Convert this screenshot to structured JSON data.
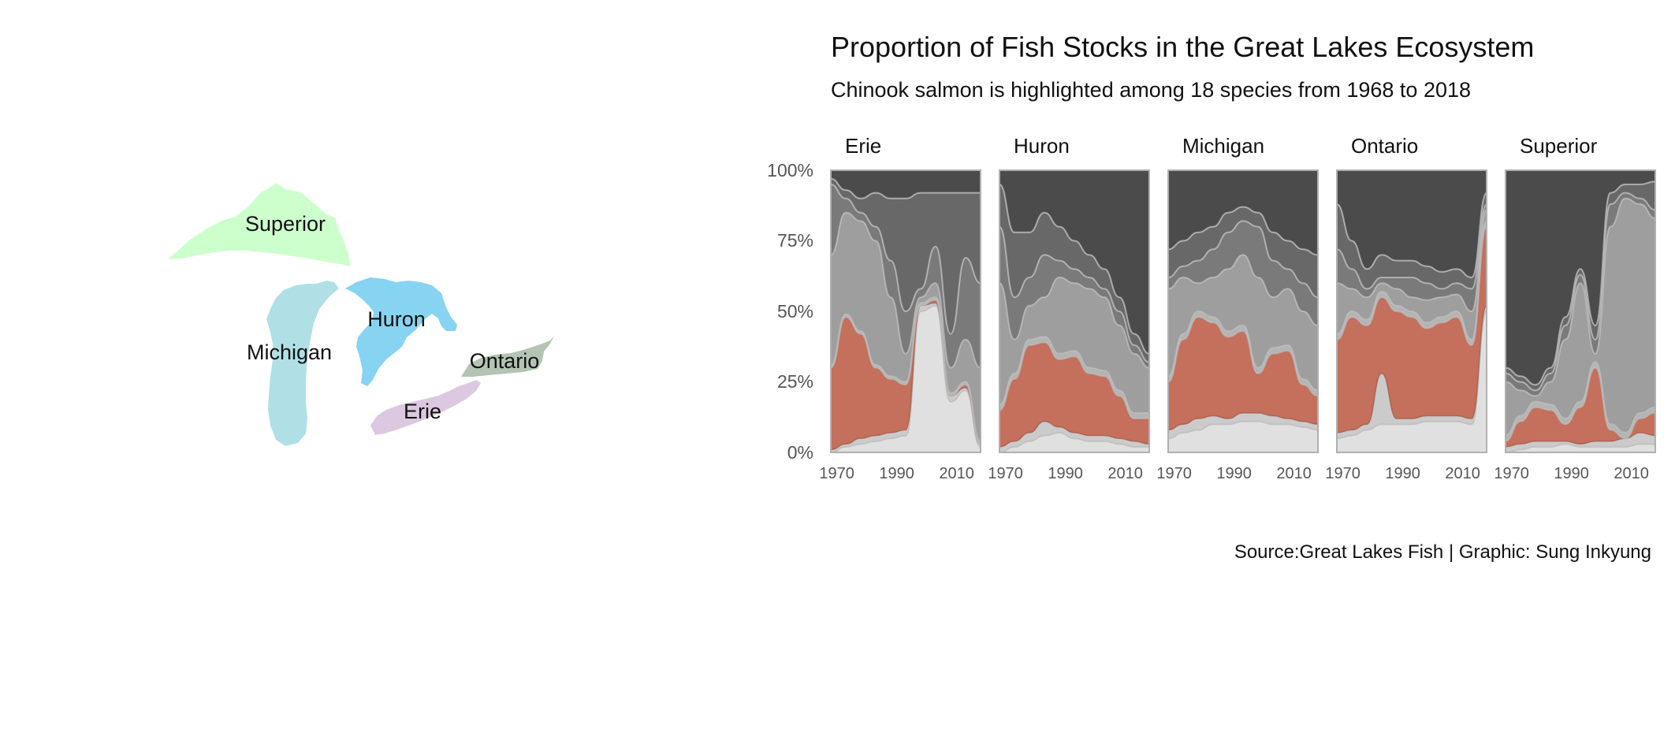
{
  "chart_data": {
    "type": "area",
    "subtype": "stacked-100-percent, faceted",
    "title": "Proportion of Fish Stocks in the Great Lakes Ecosystem",
    "subtitle": "Chinook salmon is highlighted among 18 species from 1968 to 2018",
    "caption": "Source:Great Lakes Fish | Graphic: Sung Inkyung",
    "highlight_series": "Chinook salmon",
    "highlight_color": "#c4705c",
    "grey_palette": [
      "#e0e0e0",
      "#cbcbcb",
      "#b4b4b4",
      "#9e9e9e",
      "#8c8c8c",
      "#7a7a7a",
      "#686868",
      "#5a5a5a",
      "#4b4b4b"
    ],
    "x": [
      1968,
      1973,
      1978,
      1983,
      1988,
      1993,
      1998,
      2003,
      2008,
      2013,
      2018
    ],
    "xlim": [
      1968,
      2018
    ],
    "x_ticks": [
      "1970",
      "1990",
      "2010"
    ],
    "ylim": [
      0,
      1
    ],
    "y_ticks": [
      "0%",
      "25%",
      "50%",
      "75%",
      "100%"
    ],
    "grid": false,
    "legend": "none",
    "facets": [
      {
        "lake": "Erie",
        "cumulative_bounds": [
          [
            0,
            0,
            0,
            0,
            0,
            0,
            0,
            0,
            0,
            0,
            0
          ],
          [
            0.0,
            0.02,
            0.03,
            0.04,
            0.05,
            0.06,
            0.5,
            0.52,
            0.18,
            0.22,
            0.02
          ],
          [
            0.01,
            0.03,
            0.05,
            0.06,
            0.07,
            0.08,
            0.52,
            0.53,
            0.2,
            0.23,
            0.03
          ],
          [
            0.3,
            0.48,
            0.42,
            0.3,
            0.26,
            0.24,
            0.52,
            0.54,
            0.2,
            0.24,
            0.03
          ],
          [
            0.31,
            0.49,
            0.43,
            0.31,
            0.27,
            0.25,
            0.53,
            0.55,
            0.21,
            0.25,
            0.04
          ],
          [
            0.7,
            0.85,
            0.82,
            0.75,
            0.55,
            0.35,
            0.55,
            0.6,
            0.3,
            0.4,
            0.3
          ],
          [
            0.95,
            0.9,
            0.85,
            0.8,
            0.68,
            0.5,
            0.58,
            0.73,
            0.42,
            0.69,
            0.6
          ],
          [
            0.97,
            0.93,
            0.9,
            0.92,
            0.9,
            0.9,
            0.92,
            0.92,
            0.92,
            0.92,
            0.92
          ],
          [
            1,
            1,
            1,
            1,
            1,
            1,
            1,
            1,
            1,
            1,
            1
          ]
        ]
      },
      {
        "lake": "Huron",
        "cumulative_bounds": [
          [
            0,
            0,
            0,
            0,
            0,
            0,
            0,
            0,
            0,
            0,
            0
          ],
          [
            0.0,
            0.02,
            0.04,
            0.06,
            0.07,
            0.05,
            0.04,
            0.04,
            0.03,
            0.02,
            0.02
          ],
          [
            0.02,
            0.04,
            0.07,
            0.11,
            0.09,
            0.07,
            0.06,
            0.06,
            0.05,
            0.04,
            0.03
          ],
          [
            0.15,
            0.26,
            0.38,
            0.39,
            0.33,
            0.34,
            0.28,
            0.27,
            0.2,
            0.12,
            0.12
          ],
          [
            0.17,
            0.28,
            0.4,
            0.41,
            0.35,
            0.36,
            0.3,
            0.29,
            0.22,
            0.14,
            0.14
          ],
          [
            0.6,
            0.4,
            0.52,
            0.55,
            0.62,
            0.6,
            0.58,
            0.55,
            0.45,
            0.35,
            0.3
          ],
          [
            0.8,
            0.55,
            0.62,
            0.7,
            0.68,
            0.65,
            0.62,
            0.58,
            0.5,
            0.38,
            0.32
          ],
          [
            0.95,
            0.78,
            0.78,
            0.85,
            0.8,
            0.75,
            0.7,
            0.65,
            0.55,
            0.42,
            0.35
          ],
          [
            1,
            1,
            1,
            1,
            1,
            1,
            1,
            1,
            1,
            1,
            1
          ]
        ]
      },
      {
        "lake": "Michigan",
        "cumulative_bounds": [
          [
            0,
            0,
            0,
            0,
            0,
            0,
            0,
            0,
            0,
            0,
            0
          ],
          [
            0.05,
            0.07,
            0.08,
            0.1,
            0.1,
            0.11,
            0.11,
            0.1,
            0.1,
            0.09,
            0.08
          ],
          [
            0.08,
            0.1,
            0.12,
            0.13,
            0.12,
            0.14,
            0.14,
            0.13,
            0.12,
            0.11,
            0.1
          ],
          [
            0.25,
            0.4,
            0.48,
            0.46,
            0.41,
            0.43,
            0.28,
            0.35,
            0.36,
            0.24,
            0.2
          ],
          [
            0.27,
            0.42,
            0.5,
            0.48,
            0.43,
            0.45,
            0.3,
            0.37,
            0.38,
            0.26,
            0.22
          ],
          [
            0.58,
            0.62,
            0.6,
            0.62,
            0.65,
            0.7,
            0.62,
            0.55,
            0.58,
            0.5,
            0.45
          ],
          [
            0.62,
            0.66,
            0.68,
            0.72,
            0.78,
            0.82,
            0.8,
            0.68,
            0.65,
            0.6,
            0.55
          ],
          [
            0.72,
            0.75,
            0.78,
            0.8,
            0.85,
            0.87,
            0.85,
            0.78,
            0.75,
            0.72,
            0.7
          ],
          [
            1,
            1,
            1,
            1,
            1,
            1,
            1,
            1,
            1,
            1,
            1
          ]
        ]
      },
      {
        "lake": "Ontario",
        "cumulative_bounds": [
          [
            0,
            0,
            0,
            0,
            0,
            0,
            0,
            0,
            0,
            0,
            0
          ],
          [
            0.05,
            0.06,
            0.08,
            0.1,
            0.1,
            0.1,
            0.11,
            0.11,
            0.11,
            0.1,
            0.5
          ],
          [
            0.07,
            0.08,
            0.1,
            0.28,
            0.12,
            0.12,
            0.13,
            0.13,
            0.13,
            0.12,
            0.52
          ],
          [
            0.4,
            0.48,
            0.45,
            0.55,
            0.5,
            0.48,
            0.44,
            0.46,
            0.48,
            0.38,
            0.8
          ],
          [
            0.42,
            0.5,
            0.47,
            0.57,
            0.52,
            0.5,
            0.46,
            0.48,
            0.5,
            0.4,
            0.82
          ],
          [
            0.6,
            0.58,
            0.55,
            0.6,
            0.58,
            0.55,
            0.54,
            0.55,
            0.56,
            0.5,
            0.86
          ],
          [
            0.72,
            0.65,
            0.58,
            0.62,
            0.62,
            0.62,
            0.6,
            0.58,
            0.6,
            0.58,
            0.88
          ],
          [
            0.88,
            0.75,
            0.65,
            0.7,
            0.68,
            0.68,
            0.66,
            0.64,
            0.65,
            0.62,
            0.92
          ],
          [
            1,
            1,
            1,
            1,
            1,
            1,
            1,
            1,
            1,
            1,
            1
          ]
        ]
      },
      {
        "lake": "Superior",
        "cumulative_bounds": [
          [
            0,
            0,
            0,
            0,
            0,
            0,
            0,
            0,
            0,
            0,
            0
          ],
          [
            0.0,
            0.01,
            0.02,
            0.02,
            0.03,
            0.02,
            0.02,
            0.02,
            0.02,
            0.03,
            0.03
          ],
          [
            0.02,
            0.03,
            0.04,
            0.04,
            0.04,
            0.03,
            0.04,
            0.04,
            0.05,
            0.07,
            0.06
          ],
          [
            0.04,
            0.11,
            0.16,
            0.15,
            0.1,
            0.16,
            0.3,
            0.08,
            0.05,
            0.12,
            0.14
          ],
          [
            0.06,
            0.13,
            0.18,
            0.17,
            0.12,
            0.18,
            0.32,
            0.1,
            0.07,
            0.14,
            0.16
          ],
          [
            0.25,
            0.22,
            0.2,
            0.25,
            0.4,
            0.6,
            0.35,
            0.8,
            0.9,
            0.88,
            0.83
          ],
          [
            0.28,
            0.25,
            0.22,
            0.28,
            0.45,
            0.63,
            0.4,
            0.88,
            0.92,
            0.9,
            0.86
          ],
          [
            0.3,
            0.27,
            0.24,
            0.3,
            0.48,
            0.65,
            0.45,
            0.92,
            0.95,
            0.95,
            0.96
          ],
          [
            1,
            1,
            1,
            1,
            1,
            1,
            1,
            1,
            1,
            1,
            1
          ]
        ]
      }
    ]
  },
  "map": {
    "lakes": [
      {
        "id": "superior",
        "label": "Superior",
        "color": "#ccffcc"
      },
      {
        "id": "michigan",
        "label": "Michigan",
        "color": "#b0e0e6"
      },
      {
        "id": "huron",
        "label": "Huron",
        "color": "#87d3f2"
      },
      {
        "id": "ontario",
        "label": "Ontario",
        "color": "#b3c4b3"
      },
      {
        "id": "erie",
        "label": "Erie",
        "color": "#dcc8e0"
      }
    ]
  }
}
